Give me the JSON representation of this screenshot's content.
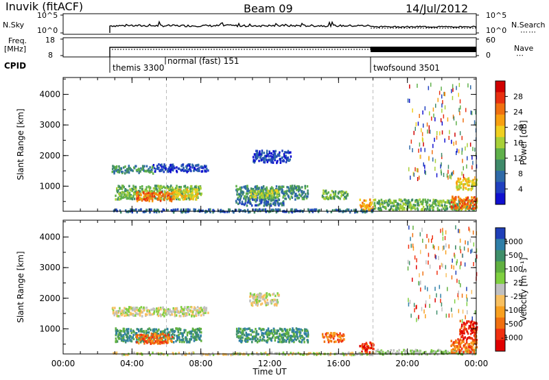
{
  "header": {
    "station": "Inuvik (fitACF)",
    "beam": "Beam 09",
    "date": "14/Jul/2012"
  },
  "strip_panels": {
    "nsky_label": "N.Sky",
    "nsky_ticks": [
      "10^5",
      "10^0"
    ],
    "nsearch_label": "N.Search",
    "nsearch_ticks": [
      "10^5",
      "10^0"
    ],
    "freq_label": "Freq.",
    "freq_unit": "[MHz]",
    "freq_ticks": [
      "18",
      "8"
    ],
    "nave_label": "Nave",
    "nave_ticks": [
      "60",
      "0"
    ],
    "cpid_label": "CPID",
    "cpid_modes": [
      "themis 3300",
      "normal (fast) 151",
      "twofsound 3501"
    ]
  },
  "chart_data": [
    {
      "type": "heatmap",
      "quantity": "Power",
      "ylabel": "Slant Range [km]",
      "xlabel": "",
      "x_ticks": [
        "00:00",
        "04:00",
        "08:00",
        "12:00",
        "16:00",
        "20:00",
        "00:00"
      ],
      "x_range_hours": [
        0,
        24
      ],
      "y_ticks": [
        "1000",
        "2000",
        "3000",
        "4000"
      ],
      "ylim": [
        180,
        4550
      ],
      "colorbar_label": "Power [dB]",
      "colorbar_ticks": [
        "4",
        "8",
        "12",
        "16",
        "20",
        "24",
        "28"
      ],
      "colorbar_colors": [
        "#1010d0",
        "#2040c0",
        "#2f6aa8",
        "#3f8a6a",
        "#5fb04a",
        "#a8d038",
        "#f0d020",
        "#f8a010",
        "#f07010",
        "#e83010",
        "#d00000"
      ],
      "mode_change_hours": [
        6,
        18
      ],
      "regions": [
        {
          "t0": 2.8,
          "t1": 5.2,
          "r0": 1450,
          "r1": 1700,
          "level": 3
        },
        {
          "t0": 5.2,
          "t1": 8.4,
          "r0": 1500,
          "r1": 1750,
          "level": 1
        },
        {
          "t0": 3.0,
          "t1": 8.0,
          "r0": 600,
          "r1": 1050,
          "level": 4
        },
        {
          "t0": 4.2,
          "t1": 6.3,
          "r0": 550,
          "r1": 850,
          "level": 8
        },
        {
          "t0": 6.3,
          "t1": 7.8,
          "r0": 600,
          "r1": 950,
          "level": 6
        },
        {
          "t0": 10.0,
          "t1": 14.2,
          "r0": 600,
          "r1": 1050,
          "level": 3
        },
        {
          "t0": 10.8,
          "t1": 12.5,
          "r0": 650,
          "r1": 900,
          "level": 5
        },
        {
          "t0": 10.0,
          "t1": 12.8,
          "r0": 400,
          "r1": 600,
          "level": 2
        },
        {
          "t0": 11.0,
          "t1": 13.2,
          "r0": 1800,
          "r1": 2200,
          "level": 1
        },
        {
          "t0": 15.0,
          "t1": 16.5,
          "r0": 600,
          "r1": 900,
          "level": 4
        },
        {
          "t0": 17.2,
          "t1": 18.0,
          "r0": 250,
          "r1": 600,
          "level": 7
        },
        {
          "t0": 18.0,
          "t1": 24.0,
          "r0": 250,
          "r1": 600,
          "level": 4
        },
        {
          "t0": 22.5,
          "t1": 24.0,
          "r0": 300,
          "r1": 700,
          "level": 8
        },
        {
          "t0": 22.8,
          "t1": 24.0,
          "r0": 900,
          "r1": 1300,
          "level": 6
        },
        {
          "t0": 20.0,
          "t1": 24.0,
          "r0": 1300,
          "r1": 4400,
          "level": 1,
          "sparse": true
        },
        {
          "t0": 2.8,
          "t1": 18.0,
          "r0": 180,
          "r1": 280,
          "level": 2
        }
      ]
    },
    {
      "type": "heatmap",
      "quantity": "Velocity",
      "ylabel": "Slant Range [km]",
      "xlabel": "Time UT",
      "x_ticks": [
        "00:00",
        "04:00",
        "08:00",
        "12:00",
        "16:00",
        "20:00",
        "00:00"
      ],
      "x_range_hours": [
        0,
        24
      ],
      "y_ticks": [
        "1000",
        "2000",
        "3000",
        "4000"
      ],
      "ylim": [
        180,
        4550
      ],
      "colorbar_label": "Velocity",
      "colorbar_unit": "[m s⁻¹]",
      "colorbar_ticks": [
        "1000",
        "500",
        "100",
        "25",
        "-25",
        "-100",
        "-500",
        "-1000"
      ],
      "colorbar_colors": [
        "#1f3fb8",
        "#2f7fa8",
        "#3f8f6a",
        "#60b040",
        "#7fd040",
        "#c0c0c0",
        "#f8c060",
        "#f8a020",
        "#f07010",
        "#f03010",
        "#e00000"
      ],
      "mode_change_hours": [
        6,
        18
      ],
      "regions": [
        {
          "t0": 2.8,
          "t1": 8.4,
          "r0": 1450,
          "r1": 1750,
          "level": 5
        },
        {
          "t0": 3.0,
          "t1": 8.0,
          "r0": 600,
          "r1": 1050,
          "level": 2
        },
        {
          "t0": 4.2,
          "t1": 6.3,
          "r0": 550,
          "r1": 900,
          "level": 8
        },
        {
          "t0": 10.0,
          "t1": 14.2,
          "r0": 600,
          "r1": 1050,
          "level": 2
        },
        {
          "t0": 10.8,
          "t1": 12.5,
          "r0": 1800,
          "r1": 2200,
          "level": 5
        },
        {
          "t0": 15.0,
          "t1": 16.3,
          "r0": 600,
          "r1": 900,
          "level": 8
        },
        {
          "t0": 17.2,
          "t1": 18.0,
          "r0": 250,
          "r1": 600,
          "level": 9
        },
        {
          "t0": 18.0,
          "t1": 24.0,
          "r0": 200,
          "r1": 350,
          "level": 4
        },
        {
          "t0": 22.5,
          "t1": 24.0,
          "r0": 250,
          "r1": 700,
          "level": 8
        },
        {
          "t0": 23.0,
          "t1": 24.0,
          "r0": 700,
          "r1": 1300,
          "level": 9
        },
        {
          "t0": 20.0,
          "t1": 24.0,
          "r0": 1300,
          "r1": 4400,
          "level": 9,
          "sparse": true
        },
        {
          "t0": 2.8,
          "t1": 18.0,
          "r0": 180,
          "r1": 260,
          "level": 5
        }
      ]
    }
  ]
}
